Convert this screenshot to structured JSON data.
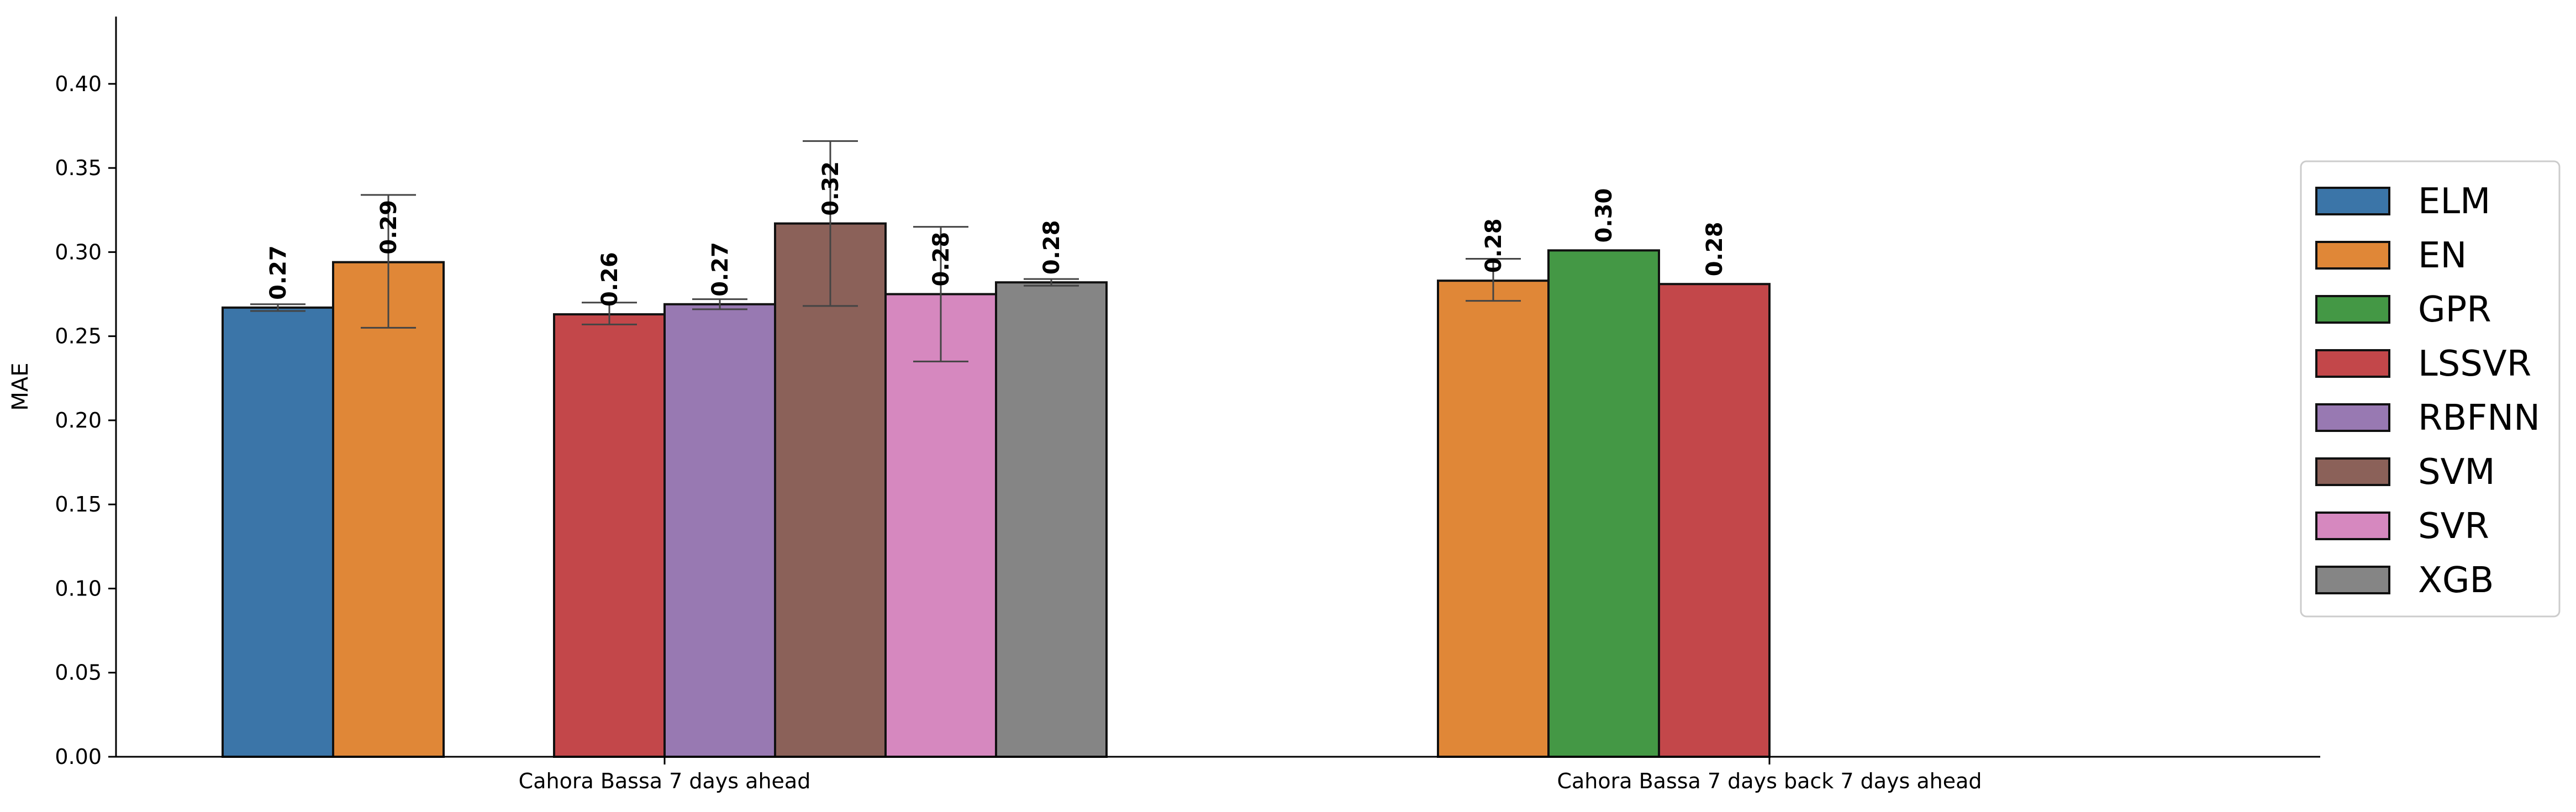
{
  "chart_data": {
    "type": "bar",
    "title": "",
    "xlabel": "",
    "ylabel": "MAE",
    "ylim": [
      0,
      0.44
    ],
    "yticks": [
      "0.00",
      "0.05",
      "0.10",
      "0.15",
      "0.20",
      "0.25",
      "0.30",
      "0.35",
      "0.40"
    ],
    "grid": false,
    "legend_position": "right",
    "categories": [
      "Cahora Bassa 7 days ahead",
      "Cahora Bassa 7 days back 7 days ahead"
    ],
    "series": [
      {
        "name": "ELM",
        "color": "#3b75a8",
        "values": [
          0.267,
          null
        ],
        "err_low": [
          0.265,
          null
        ],
        "err_high": [
          0.269,
          null
        ],
        "labels": [
          "0.27",
          ""
        ]
      },
      {
        "name": "EN",
        "color": "#e08737",
        "values": [
          0.294,
          0.283
        ],
        "err_low": [
          0.255,
          0.271
        ],
        "err_high": [
          0.334,
          0.296
        ],
        "labels": [
          "0.29",
          "0.28"
        ]
      },
      {
        "name": "GPR",
        "color": "#449845",
        "values": [
          null,
          0.301
        ],
        "err_low": [
          null,
          0.301
        ],
        "err_high": [
          null,
          0.301
        ],
        "labels": [
          "",
          "0.30"
        ]
      },
      {
        "name": "LSSVR",
        "color": "#c3474a",
        "values": [
          0.263,
          0.281
        ],
        "err_low": [
          0.257,
          0.281
        ],
        "err_high": [
          0.27,
          0.281
        ],
        "labels": [
          "0.26",
          "0.28"
        ]
      },
      {
        "name": "RBFNN",
        "color": "#9879b2",
        "values": [
          0.269,
          null
        ],
        "err_low": [
          0.266,
          null
        ],
        "err_high": [
          0.272,
          null
        ],
        "labels": [
          "0.27",
          ""
        ]
      },
      {
        "name": "SVM",
        "color": "#8b6159",
        "values": [
          0.317,
          null
        ],
        "err_low": [
          0.268,
          null
        ],
        "err_high": [
          0.366,
          null
        ],
        "labels": [
          "0.32",
          ""
        ]
      },
      {
        "name": "SVR",
        "color": "#d688bf",
        "values": [
          0.275,
          null
        ],
        "err_low": [
          0.235,
          null
        ],
        "err_high": [
          0.315,
          null
        ],
        "labels": [
          "0.28",
          ""
        ]
      },
      {
        "name": "XGB",
        "color": "#858585",
        "values": [
          0.282,
          null
        ],
        "err_low": [
          0.28,
          null
        ],
        "err_high": [
          0.284,
          null
        ],
        "labels": [
          "0.28",
          ""
        ]
      }
    ]
  }
}
